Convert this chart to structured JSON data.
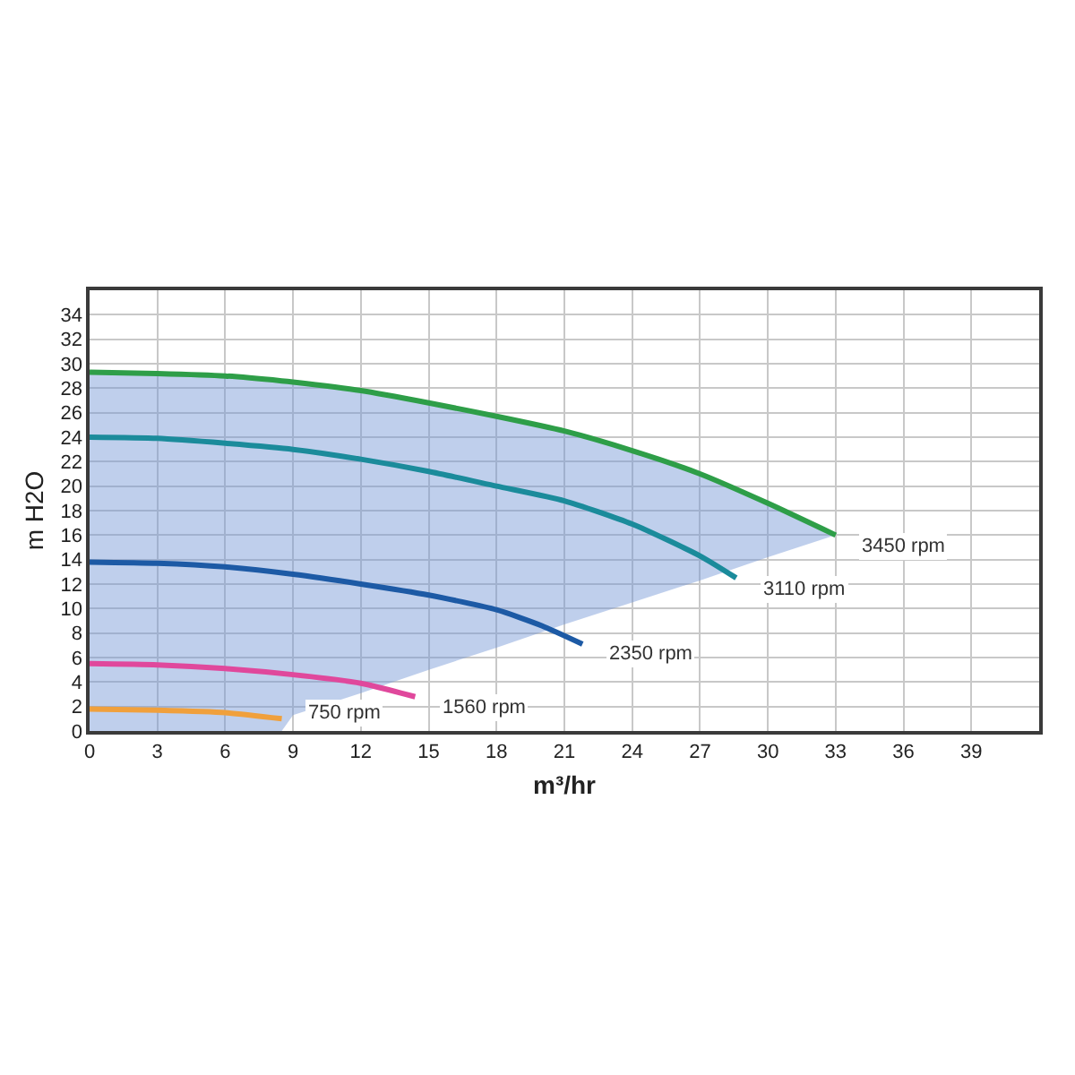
{
  "chart_data": {
    "type": "line",
    "xlabel": "m³/hr",
    "ylabel": "m H2O",
    "xlim": [
      0,
      42
    ],
    "ylim": [
      0,
      36
    ],
    "xticks": [
      0,
      3,
      6,
      9,
      12,
      15,
      18,
      21,
      24,
      27,
      30,
      33,
      36,
      39
    ],
    "yticks": [
      0,
      2,
      4,
      6,
      8,
      10,
      12,
      14,
      16,
      18,
      20,
      22,
      24,
      26,
      28,
      30,
      32,
      34
    ],
    "grid": true,
    "marker": "none",
    "line_style": "solid",
    "series": [
      {
        "name": "3450 rpm",
        "color": "#2e9e48",
        "x": [
          0,
          3,
          6,
          8.5,
          9,
          12,
          15,
          18,
          21,
          24,
          27,
          30,
          33
        ],
        "values": [
          29.3,
          29.2,
          29.0,
          28.6,
          28.5,
          27.8,
          26.8,
          25.7,
          24.5,
          22.9,
          21.0,
          18.6,
          16.0
        ],
        "lower": [
          0,
          0,
          0,
          0,
          1.3,
          3.1,
          5.0,
          6.8,
          8.7,
          10.5,
          12.3,
          14.2,
          16.0
        ],
        "upper": [
          29.3,
          29.2,
          29.0,
          28.6,
          28.5,
          27.8,
          26.8,
          25.7,
          24.5,
          22.9,
          21.0,
          18.6,
          16.0
        ]
      },
      {
        "name": "3110 rpm",
        "color": "#1b8b9b",
        "x": [
          0,
          3,
          6,
          9,
          12,
          15,
          18,
          21,
          24,
          27,
          28.6
        ],
        "values": [
          24.0,
          23.9,
          23.5,
          23.0,
          22.2,
          21.2,
          20.0,
          18.8,
          16.9,
          14.3,
          12.5
        ]
      },
      {
        "name": "2350 rpm",
        "color": "#1d5aa5",
        "x": [
          0,
          3,
          6,
          9,
          12,
          15,
          18,
          20,
          21.8
        ],
        "values": [
          13.8,
          13.7,
          13.4,
          12.8,
          12.0,
          11.1,
          9.9,
          8.6,
          7.1
        ]
      },
      {
        "name": "1560 rpm",
        "color": "#e0489c",
        "x": [
          0,
          3,
          6,
          9,
          12,
          14.4
        ],
        "values": [
          5.5,
          5.4,
          5.1,
          4.6,
          3.9,
          2.8
        ]
      },
      {
        "name": "750 rpm",
        "color": "#f0a03c",
        "x": [
          0,
          3,
          6,
          8.5
        ],
        "values": [
          1.8,
          1.7,
          1.5,
          1.0
        ]
      }
    ]
  }
}
